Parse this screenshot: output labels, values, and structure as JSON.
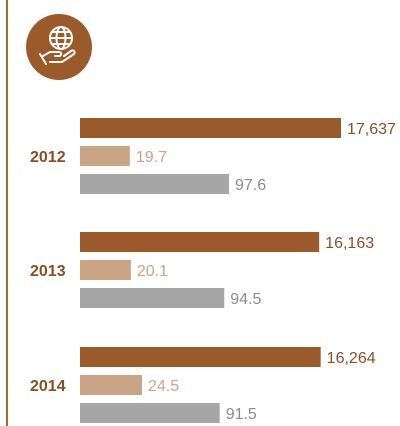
{
  "colors": {
    "rule": "#a06838",
    "icon_bg": "#9a5a2a",
    "icon_fg": "#ffffff",
    "year_text": "#8a4e22",
    "series": [
      "#9a5a2a",
      "#c9a585",
      "#a6a6a6"
    ],
    "value_text": [
      "#8a4e22",
      "#c9a585",
      "#8c8c8c"
    ]
  },
  "icon": {
    "name": "globe-in-hand-icon"
  },
  "chart_data": {
    "type": "bar",
    "orientation": "horizontal",
    "categories": [
      "2012",
      "2013",
      "2014"
    ],
    "series": [
      {
        "values": [
          17637,
          16163,
          16264
        ],
        "labels": [
          "17,637",
          "16,163",
          "16,264"
        ]
      },
      {
        "values": [
          19.7,
          20.1,
          24.5
        ],
        "labels": [
          "19.7",
          "20.1",
          "24.5"
        ]
      },
      {
        "values": [
          97.6,
          94.5,
          91.5
        ],
        "labels": [
          "97.6",
          "94.5",
          "91.5"
        ]
      }
    ],
    "title": "",
    "xlabel": "",
    "ylabel": "",
    "grid": false,
    "legend": "none"
  }
}
